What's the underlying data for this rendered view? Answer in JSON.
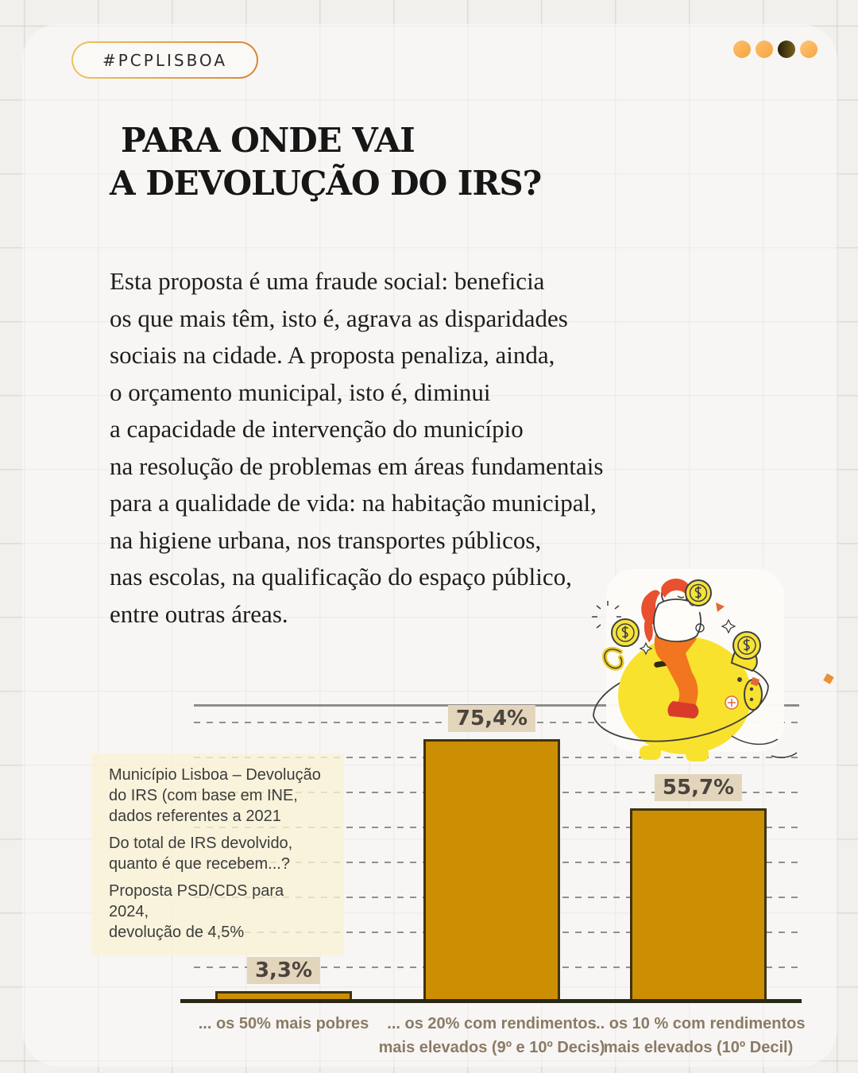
{
  "badge": {
    "label": "#PCPLISBOA"
  },
  "decor": {
    "dots": [
      {
        "from": "#FFC06B",
        "to": "#F5A43F",
        "angle": "135deg"
      },
      {
        "from": "#FFC06B",
        "to": "#F5A43F",
        "angle": "135deg"
      },
      {
        "from": "#241D06",
        "to": "#77621A",
        "angle": "90deg"
      },
      {
        "from": "#FFC879",
        "to": "#F5A43F",
        "angle": "135deg"
      }
    ],
    "badge_border_from": "#EEC366",
    "badge_border_to": "#D8873A"
  },
  "title": {
    "line1": "PARA ONDE VAI",
    "line2": "A DEVOLUÇÃO DO IRS?"
  },
  "body_text": "Esta proposta é uma fraude social: beneficia\nos que mais têm, isto é, agrava as disparidades\nsociais na cidade. A proposta penaliza, ainda,\no orçamento municipal, isto é, diminui\na capacidade de intervenção do município\nna resolução de problemas em áreas fundamentais\npara a qualidade de vida: na habitação municipal,\nna higiene urbana, nos transportes públicos,\nnas escolas, na qualificação do espaço público,\nentre outras áreas.",
  "chart_data": {
    "type": "bar",
    "title": "Do total de IRS devolvido, quanto é que recebem...?",
    "categories": [
      "... os 50% mais pobres",
      "... os 20% com rendimentos\nmais elevados (9º e 10º Decis)",
      "... os 10 % com rendimentos\nmais elevados (10º Decil)"
    ],
    "values": [
      3.3,
      75.4,
      55.7
    ],
    "value_labels": [
      "3,3%",
      "75,4%",
      "55,7%"
    ],
    "ylabel": "",
    "xlabel": "",
    "ylim": [
      0,
      85
    ],
    "gridlines_percent": [
      10,
      20,
      30,
      40,
      50,
      60,
      70,
      80
    ],
    "grid": "dashed-horizontal",
    "legend": "none",
    "annotations": {
      "p1": "Município Lisboa – Devolução\ndo IRS (com base em INE,\ndados referentes a 2021",
      "p2": "Do total de IRS devolvido,\nquanto é que recebem...?",
      "p3": "Proposta PSD/CDS para 2024,\ndevolução de 4,5%"
    },
    "colors": {
      "bar_fill": "#CC8F03",
      "bar_border": "#3E3310",
      "value_chip_bg": "#E3D5BC",
      "value_chip_text": "#4A443C",
      "category_text": "#8A7B66",
      "baseline": "#2B2713",
      "gridline": "#90908A",
      "notes_bg": "#FAF2D5"
    }
  },
  "illustration": {
    "icons": [
      "piggy-bank-icon",
      "coin-icon",
      "person-rider-figure",
      "sparkle-icon",
      "orbit-ring-icon"
    ]
  }
}
